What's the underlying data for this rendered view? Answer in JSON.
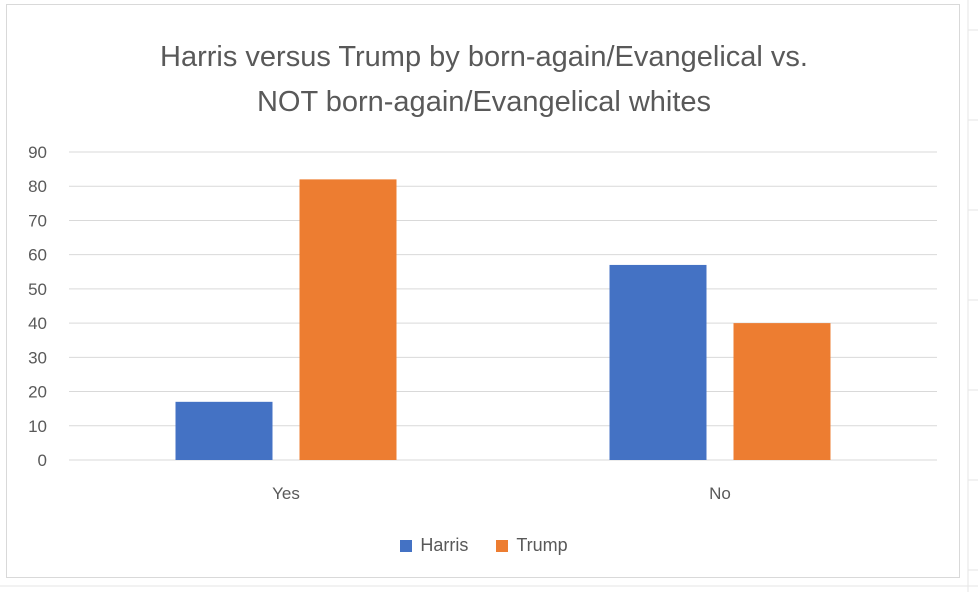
{
  "chart_data": {
    "type": "bar",
    "title_lines": [
      "Harris versus Trump by born-again/Evangelical vs.",
      "NOT born-again/Evangelical whites"
    ],
    "categories": [
      "Yes",
      "No"
    ],
    "series": [
      {
        "name": "Harris",
        "values": [
          17,
          57
        ],
        "color": "#4472c4"
      },
      {
        "name": "Trump",
        "values": [
          82,
          40
        ],
        "color": "#ed7d31"
      }
    ],
    "y_ticks": [
      "0",
      "10",
      "20",
      "30",
      "40",
      "50",
      "60",
      "70",
      "80",
      "90"
    ],
    "ylim": [
      0,
      90
    ],
    "grid": true,
    "legend_position": "bottom"
  }
}
